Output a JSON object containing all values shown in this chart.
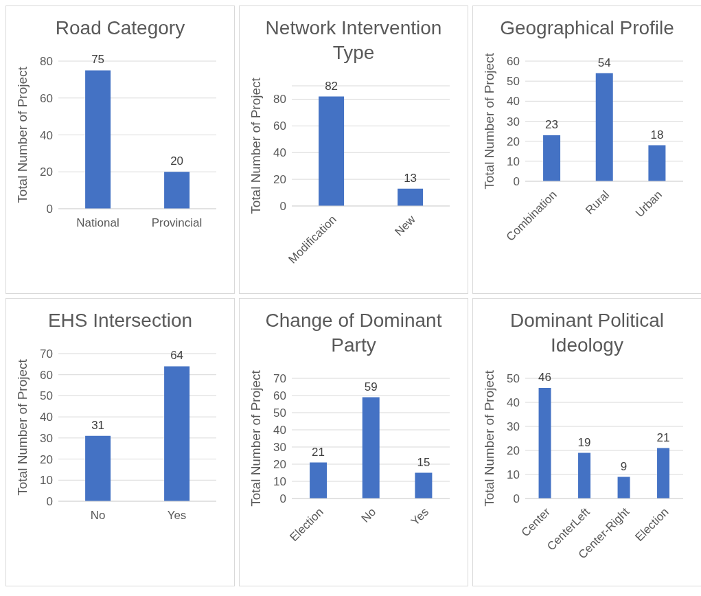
{
  "chart_data": [
    {
      "type": "bar",
      "title": "Road Category",
      "ylabel": "Total Number of Project",
      "categories": [
        "National",
        "Provincial"
      ],
      "values": [
        75,
        20
      ],
      "color": "#4472c4",
      "ylim": [
        0,
        80
      ],
      "yticks": [
        0,
        20,
        40,
        60,
        80
      ],
      "grid": "y",
      "data_labels": true
    },
    {
      "type": "bar",
      "title": "Network Intervention Type",
      "ylabel": "Total Number of Project",
      "categories": [
        "Modification",
        "New"
      ],
      "values": [
        82,
        13
      ],
      "color": "#4472c4",
      "ylim": [
        0,
        90
      ],
      "yticks": [
        0,
        20,
        40,
        60,
        80
      ],
      "grid": "y",
      "data_labels": true
    },
    {
      "type": "bar",
      "title": "Geographical Profile",
      "ylabel": "Total Number of Project",
      "categories": [
        "Combination",
        "Rural",
        "Urban"
      ],
      "values": [
        23,
        54,
        18
      ],
      "color": "#4472c4",
      "ylim": [
        0,
        60
      ],
      "yticks": [
        0,
        10,
        20,
        30,
        40,
        50,
        60
      ],
      "grid": "y",
      "data_labels": true
    },
    {
      "type": "bar",
      "title": "EHS Intersection",
      "ylabel": "Total Number of Project",
      "categories": [
        "No",
        "Yes"
      ],
      "values": [
        31,
        64
      ],
      "color": "#4472c4",
      "ylim": [
        0,
        70
      ],
      "yticks": [
        0,
        10,
        20,
        30,
        40,
        50,
        60,
        70
      ],
      "grid": "y",
      "data_labels": true
    },
    {
      "type": "bar",
      "title": "Change of Dominant Party",
      "ylabel": "Total Number of Project",
      "categories": [
        "Election",
        "No",
        "Yes"
      ],
      "values": [
        21,
        59,
        15
      ],
      "color": "#4472c4",
      "ylim": [
        0,
        70
      ],
      "yticks": [
        0,
        10,
        20,
        30,
        40,
        50,
        60,
        70
      ],
      "grid": "y",
      "data_labels": true
    },
    {
      "type": "bar",
      "title": "Dominant Political Ideology",
      "ylabel": "Total Number of Project",
      "categories": [
        "Center",
        "CenterLeft",
        "Center-Right",
        "Election"
      ],
      "values": [
        46,
        19,
        9,
        21
      ],
      "color": "#4472c4",
      "ylim": [
        0,
        50
      ],
      "yticks": [
        0,
        10,
        20,
        30,
        40,
        50
      ],
      "grid": "y",
      "data_labels": true
    }
  ]
}
